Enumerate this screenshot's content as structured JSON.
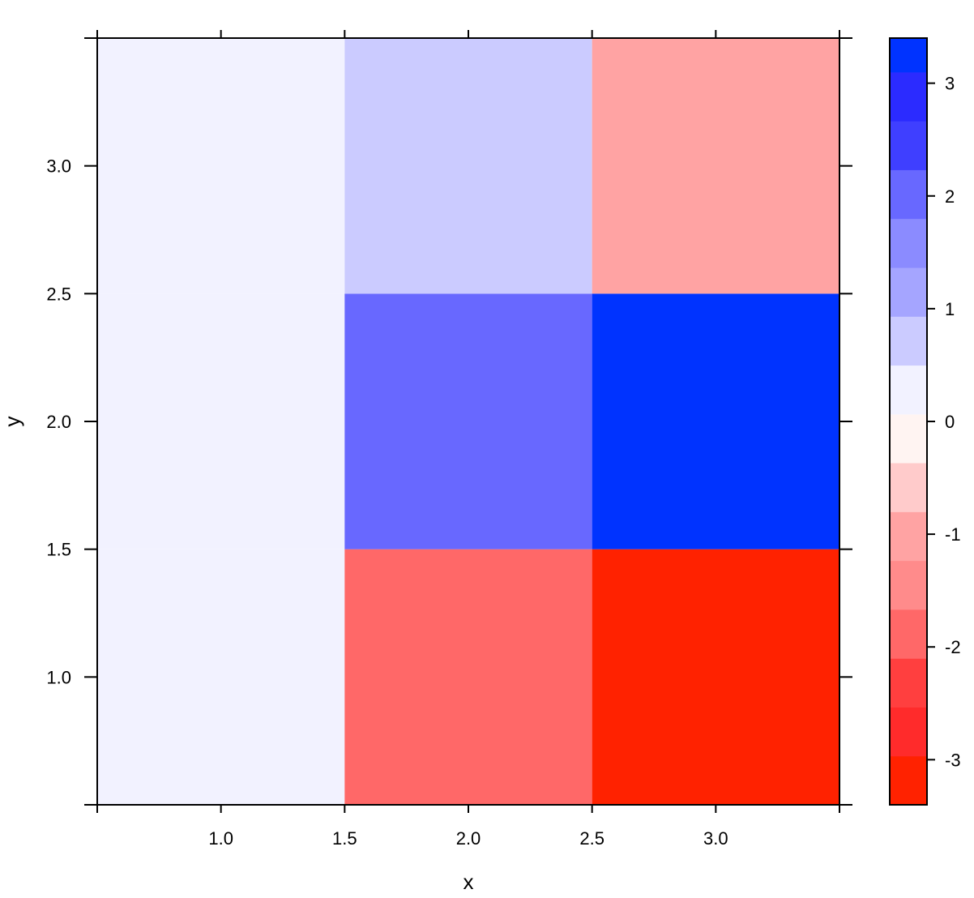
{
  "chart_data": {
    "type": "heatmap",
    "xlabel": "x",
    "ylabel": "y",
    "xlim": [
      0.5,
      3.5
    ],
    "ylim": [
      0.5,
      3.5
    ],
    "x_ticks": [
      "1.0",
      "1.5",
      "2.0",
      "2.5",
      "3.0"
    ],
    "y_ticks": [
      "1.0",
      "1.5",
      "2.0",
      "2.5",
      "3.0"
    ],
    "grid": false,
    "legend": "right",
    "x": [
      1,
      2,
      3
    ],
    "y": [
      1,
      2,
      3
    ],
    "cells": [
      {
        "x": 1,
        "y": 1,
        "value": 0.1
      },
      {
        "x": 1,
        "y": 2,
        "value": 0.1
      },
      {
        "x": 1,
        "y": 3,
        "value": 0.1
      },
      {
        "x": 2,
        "y": 1,
        "value": -1.9
      },
      {
        "x": 2,
        "y": 2,
        "value": 1.9
      },
      {
        "x": 2,
        "y": 3,
        "value": 0.9
      },
      {
        "x": 3,
        "y": 1,
        "value": -3.2
      },
      {
        "x": 3,
        "y": 2,
        "value": 3.2
      },
      {
        "x": 3,
        "y": 3,
        "value": -1.1
      }
    ],
    "colorbar": {
      "range": [
        -3.4,
        3.4
      ],
      "ticks": [
        {
          "value": -3,
          "label": "-3"
        },
        {
          "value": -2,
          "label": "-2"
        },
        {
          "value": -1,
          "label": "-1"
        },
        {
          "value": 0,
          "label": "0"
        },
        {
          "value": 1,
          "label": "1"
        },
        {
          "value": 2,
          "label": "2"
        },
        {
          "value": 3,
          "label": "3"
        }
      ],
      "bins": [
        {
          "from": -3.4,
          "to": -2.966,
          "color": "#FF2200"
        },
        {
          "from": -2.966,
          "to": -2.533,
          "color": "#FF2B2B"
        },
        {
          "from": -2.533,
          "to": -2.1,
          "color": "#FF3F3F"
        },
        {
          "from": -2.1,
          "to": -1.666,
          "color": "#FF6868"
        },
        {
          "from": -1.666,
          "to": -1.233,
          "color": "#FF8B8B"
        },
        {
          "from": -1.233,
          "to": -0.8,
          "color": "#FFA3A3"
        },
        {
          "from": -0.8,
          "to": -0.366,
          "color": "#FFCBCB"
        },
        {
          "from": -0.366,
          "to": 0.066,
          "color": "#FFF4F2"
        },
        {
          "from": 0.066,
          "to": 0.5,
          "color": "#F2F2FF"
        },
        {
          "from": 0.5,
          "to": 0.933,
          "color": "#CBCBFF"
        },
        {
          "from": 0.933,
          "to": 1.366,
          "color": "#A5A5FF"
        },
        {
          "from": 1.366,
          "to": 1.8,
          "color": "#8B8BFF"
        },
        {
          "from": 1.8,
          "to": 2.233,
          "color": "#6868FF"
        },
        {
          "from": 2.233,
          "to": 2.666,
          "color": "#3F3FFF"
        },
        {
          "from": 2.666,
          "to": 3.1,
          "color": "#2B2BFF"
        },
        {
          "from": 3.1,
          "to": 3.4,
          "color": "#0033FF"
        }
      ]
    }
  }
}
